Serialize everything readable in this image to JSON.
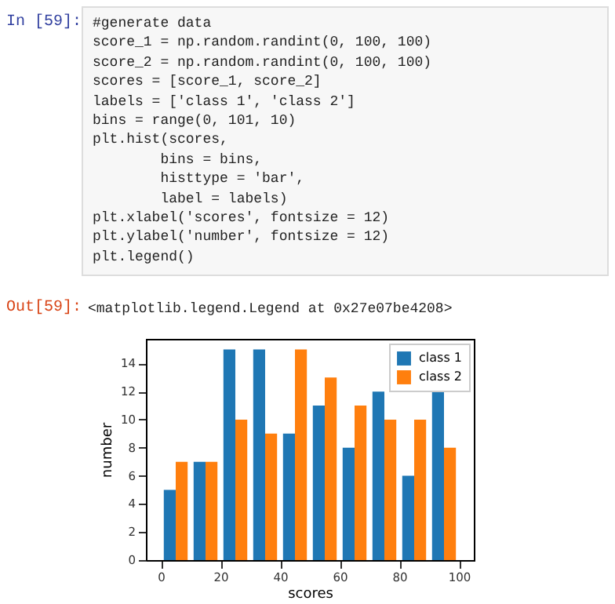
{
  "chart_data": {
    "type": "histogram",
    "xlabel": "scores",
    "ylabel": "number",
    "annotations": [
      "In [59]:",
      "#generate data",
      "score_1 = np.random.randint(0, 100, 100)",
      "score_2 = np.random.randint(0, 100, 100)",
      "scores = [score_1, score_2]",
      "labels = ['class 1', 'class 2']",
      "bins = range(0, 101, 10)",
      "plt.hist(scores,",
      "        bins = bins,",
      "        histtype = 'bar',",
      "        label = labels)",
      "plt.xlabel('scores', fontsize = 12)",
      "plt.ylabel('number', fontsize = 12)",
      "plt.legend()",
      "Out[59]:",
      "<matplotlib.legend.Legend at 0x27e07be4208>"
    ],
    "bins": [
      0,
      10,
      20,
      30,
      40,
      50,
      60,
      70,
      80,
      90,
      100
    ],
    "series": [
      {
        "name": "class 1",
        "color": "#1f77b4",
        "values": [
          5,
          7,
          15,
          15,
          9,
          11,
          8,
          12,
          6,
          12
        ]
      },
      {
        "name": "class 2",
        "color": "#ff7f0e",
        "values": [
          7,
          7,
          10,
          9,
          15,
          13,
          11,
          10,
          10,
          8
        ]
      }
    ],
    "xlim": [
      -5,
      105
    ],
    "xticks": [
      0,
      20,
      40,
      60,
      80,
      100
    ],
    "ylim": [
      0,
      15.75
    ],
    "yticks": [
      0,
      2,
      4,
      6,
      8,
      10,
      12,
      14
    ],
    "grid": false,
    "legend": "top right"
  }
}
